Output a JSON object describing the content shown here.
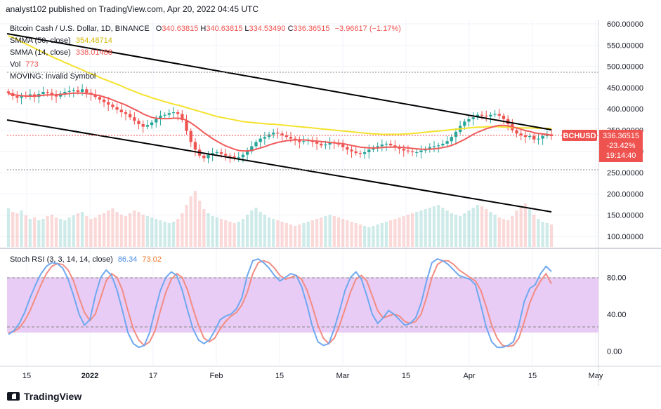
{
  "header": {
    "publisher": "analyst102 published on TradingView.com, Apr 20, 2022 04:45 UTC"
  },
  "main_legend": {
    "symbol": "Bitcoin Cash / U.S. Dollar, 1D, BINANCE",
    "O": "340.63815",
    "H": "340.63815",
    "L": "334.53490",
    "C": "336.36515",
    "change": "−3.96617 (−1.17%)",
    "sma50_label": "SMMA (50, close)",
    "sma50_value": "354.48714",
    "sma14_label": "SMMA (14, close)",
    "sma14_value": "338.01488",
    "vol_label": "Vol",
    "vol_value": "773",
    "moving_label": "MOVING: Invalid Symbol"
  },
  "stoch_legend": {
    "label": "Stoch RSI (3, 3, 14, 14, close)",
    "k": "86.34",
    "d": "73.02"
  },
  "price_tag": {
    "symbol": "BCHUSD",
    "price": "336.36515",
    "change_pct": "-23.42%",
    "countdown": "19:14:40"
  },
  "footer": {
    "brand": "TradingView"
  },
  "colors": {
    "up": "#26a69a",
    "down": "#ef5350",
    "sma50": "#f5e22d",
    "sma14": "#f05a5a",
    "stoch_k": "#6ea8f0",
    "stoch_d": "#f28c82",
    "band_fill": "#e8ccf5",
    "trend": "#000000"
  },
  "chart_data": [
    {
      "type": "candlestick",
      "title": "Bitcoin Cash / U.S. Dollar, 1D, BINANCE",
      "x_ticks": [
        "15",
        "2022",
        "17",
        "Feb",
        "15",
        "Mar",
        "15",
        "Apr",
        "15",
        "May"
      ],
      "y_ticks": [
        "600.00000",
        "550.00000",
        "500.00000",
        "450.00000",
        "400.00000",
        "350.00000",
        "300.00000",
        "250.00000",
        "200.00000",
        "150.00000",
        "100.00000"
      ],
      "ylim": [
        75,
        610
      ],
      "close_series": [
        437,
        430,
        426,
        432,
        430,
        434,
        428,
        435,
        440,
        438,
        432,
        429,
        436,
        440,
        442,
        444,
        440,
        446,
        438,
        434,
        428,
        422,
        416,
        410,
        404,
        398,
        392,
        388,
        380,
        372,
        364,
        358,
        362,
        368,
        376,
        384,
        386,
        390,
        392,
        388,
        374,
        348,
        322,
        304,
        290,
        284,
        292,
        296,
        298,
        294,
        290,
        288,
        284,
        286,
        292,
        300,
        312,
        322,
        330,
        334,
        340,
        344,
        342,
        338,
        334,
        330,
        326,
        322,
        324,
        326,
        322,
        318,
        314,
        316,
        322,
        320,
        316,
        310,
        304,
        300,
        296,
        294,
        298,
        304,
        308,
        312,
        316,
        318,
        314,
        310,
        306,
        302,
        300,
        298,
        298,
        302,
        306,
        310,
        312,
        314,
        318,
        324,
        334,
        346,
        360,
        370,
        376,
        380,
        386,
        384,
        382,
        386,
        388,
        384,
        376,
        364,
        350,
        342,
        338,
        334,
        336,
        328,
        330,
        336,
        340,
        336
      ],
      "sma50_series": [
        572,
        568,
        563,
        558,
        553,
        548,
        543,
        538,
        533,
        528,
        523,
        518,
        514,
        509,
        505,
        500,
        496,
        492,
        487,
        483,
        479,
        474,
        470,
        466,
        462,
        458,
        454,
        449,
        445,
        441,
        437,
        433,
        430,
        426,
        423,
        420,
        417,
        414,
        411,
        409,
        406,
        403,
        400,
        397,
        394,
        391,
        388,
        385,
        382,
        380,
        378,
        376,
        374,
        372,
        370,
        369,
        368,
        367,
        366,
        365,
        364,
        364,
        363,
        362,
        361,
        360,
        359,
        358,
        357,
        356,
        355,
        354,
        353,
        352,
        351,
        350,
        349,
        348,
        347,
        346,
        345,
        344,
        343,
        342,
        341,
        341,
        340,
        340,
        340,
        340,
        340,
        341,
        341,
        342,
        343,
        344,
        345,
        346,
        347,
        348,
        349,
        350,
        351,
        352,
        353,
        354,
        355,
        356,
        357,
        357,
        358,
        358,
        358,
        358,
        357,
        357,
        356,
        356,
        355,
        355,
        355,
        355,
        354,
        354,
        354,
        354
      ],
      "sma14_series": [
        436,
        434,
        432,
        431,
        430,
        430,
        430,
        431,
        432,
        433,
        433,
        433,
        434,
        435,
        436,
        437,
        437,
        437,
        436,
        435,
        433,
        431,
        428,
        425,
        421,
        417,
        413,
        409,
        404,
        399,
        394,
        388,
        384,
        380,
        378,
        377,
        377,
        377,
        378,
        378,
        377,
        373,
        367,
        360,
        352,
        344,
        337,
        330,
        324,
        318,
        313,
        309,
        305,
        302,
        301,
        301,
        302,
        305,
        308,
        311,
        315,
        318,
        321,
        323,
        325,
        326,
        327,
        327,
        327,
        326,
        325,
        324,
        323,
        322,
        321,
        320,
        319,
        318,
        316,
        314,
        312,
        310,
        309,
        308,
        308,
        308,
        309,
        310,
        310,
        310,
        310,
        309,
        308,
        307,
        306,
        305,
        305,
        305,
        306,
        307,
        309,
        311,
        314,
        318,
        323,
        328,
        334,
        340,
        345,
        349,
        353,
        356,
        359,
        361,
        361,
        360,
        358,
        355,
        352,
        349,
        347,
        344,
        342,
        341,
        340,
        338
      ],
      "volume_series": [
        55,
        50,
        48,
        52,
        45,
        40,
        42,
        38,
        40,
        44,
        46,
        42,
        40,
        38,
        42,
        45,
        48,
        50,
        44,
        40,
        42,
        46,
        48,
        52,
        55,
        50,
        46,
        44,
        48,
        52,
        50,
        46,
        44,
        42,
        40,
        38,
        36,
        34,
        36,
        40,
        48,
        60,
        72,
        80,
        66,
        54,
        48,
        44,
        42,
        40,
        38,
        36,
        34,
        36,
        40,
        46,
        52,
        56,
        50,
        46,
        42,
        40,
        38,
        36,
        34,
        32,
        30,
        32,
        34,
        36,
        38,
        40,
        42,
        44,
        46,
        44,
        42,
        40,
        38,
        36,
        34,
        32,
        30,
        28,
        30,
        32,
        34,
        36,
        38,
        40,
        42,
        44,
        46,
        48,
        50,
        52,
        54,
        56,
        58,
        60,
        56,
        52,
        48,
        46,
        44,
        48,
        52,
        56,
        60,
        58,
        54,
        50,
        46,
        42,
        40,
        38,
        44,
        52,
        58,
        62,
        54,
        46,
        40,
        36,
        34,
        32
      ]
    },
    {
      "type": "line",
      "title": "Stoch RSI (3, 3, 14, 14, close)",
      "y_ticks": [
        "80.00",
        "40.00",
        "0.00"
      ],
      "band": [
        20,
        80
      ],
      "ylim": [
        -15,
        110
      ],
      "series": [
        {
          "name": "K",
          "values": [
            18,
            22,
            30,
            42,
            58,
            72,
            84,
            92,
            96,
            95,
            90,
            78,
            60,
            40,
            28,
            34,
            60,
            80,
            88,
            82,
            66,
            44,
            20,
            8,
            4,
            6,
            20,
            44,
            66,
            80,
            86,
            82,
            66,
            44,
            24,
            12,
            8,
            12,
            22,
            34,
            38,
            40,
            46,
            58,
            82,
            98,
            100,
            96,
            90,
            82,
            76,
            80,
            84,
            82,
            70,
            50,
            26,
            10,
            6,
            8,
            24,
            44,
            66,
            80,
            86,
            78,
            60,
            40,
            30,
            36,
            44,
            40,
            34,
            28,
            30,
            36,
            52,
            76,
            96,
            100,
            98,
            94,
            88,
            82,
            80,
            78,
            72,
            50,
            26,
            10,
            4,
            4,
            6,
            10,
            28,
            54,
            68,
            72,
            84,
            92,
            86.34
          ]
        },
        {
          "name": "D",
          "values": [
            20,
            21,
            25,
            33,
            44,
            58,
            72,
            84,
            92,
            95,
            94,
            88,
            76,
            58,
            42,
            33,
            40,
            58,
            76,
            84,
            80,
            66,
            44,
            24,
            12,
            6,
            10,
            22,
            44,
            64,
            78,
            84,
            80,
            66,
            46,
            28,
            14,
            10,
            14,
            24,
            32,
            38,
            42,
            50,
            64,
            84,
            96,
            98,
            96,
            90,
            82,
            78,
            80,
            82,
            78,
            66,
            48,
            28,
            14,
            8,
            14,
            28,
            46,
            64,
            78,
            82,
            76,
            60,
            44,
            36,
            38,
            40,
            38,
            32,
            30,
            32,
            40,
            58,
            80,
            94,
            98,
            98,
            94,
            88,
            84,
            80,
            76,
            66,
            48,
            28,
            14,
            6,
            5,
            6,
            14,
            32,
            52,
            66,
            76,
            84,
            73.02
          ]
        }
      ]
    }
  ]
}
